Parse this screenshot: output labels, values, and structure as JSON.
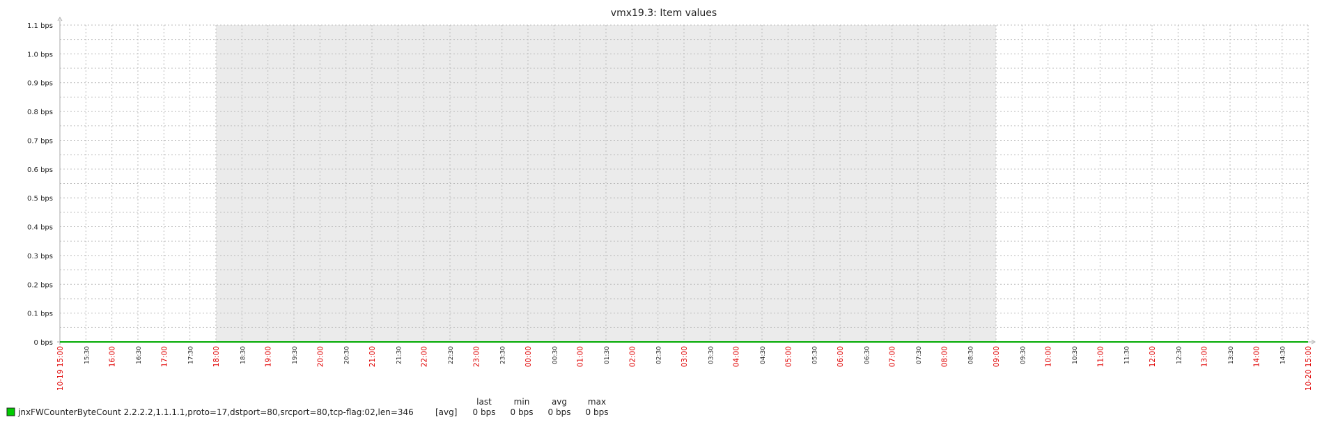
{
  "chart_data": {
    "type": "line",
    "title": "vmx19.3: Item values",
    "ylim": [
      0,
      1.1
    ],
    "y_ticks": [
      "0 bps",
      "0.1 bps",
      "0.2 bps",
      "0.3 bps",
      "0.4 bps",
      "0.5 bps",
      "0.6 bps",
      "0.7 bps",
      "0.8 bps",
      "0.9 bps",
      "1.0 bps",
      "1.1 bps"
    ],
    "x_ticks": [
      {
        "label": "10-19 15:00",
        "major": true
      },
      {
        "label": "15:30",
        "major": false
      },
      {
        "label": "16:00",
        "major": true
      },
      {
        "label": "16:30",
        "major": false
      },
      {
        "label": "17:00",
        "major": true
      },
      {
        "label": "17:30",
        "major": false
      },
      {
        "label": "18:00",
        "major": true
      },
      {
        "label": "18:30",
        "major": false
      },
      {
        "label": "19:00",
        "major": true
      },
      {
        "label": "19:30",
        "major": false
      },
      {
        "label": "20:00",
        "major": true
      },
      {
        "label": "20:30",
        "major": false
      },
      {
        "label": "21:00",
        "major": true
      },
      {
        "label": "21:30",
        "major": false
      },
      {
        "label": "22:00",
        "major": true
      },
      {
        "label": "22:30",
        "major": false
      },
      {
        "label": "23:00",
        "major": true
      },
      {
        "label": "23:30",
        "major": false
      },
      {
        "label": "00:00",
        "major": true
      },
      {
        "label": "00:30",
        "major": false
      },
      {
        "label": "01:00",
        "major": true
      },
      {
        "label": "01:30",
        "major": false
      },
      {
        "label": "02:00",
        "major": true
      },
      {
        "label": "02:30",
        "major": false
      },
      {
        "label": "03:00",
        "major": true
      },
      {
        "label": "03:30",
        "major": false
      },
      {
        "label": "04:00",
        "major": true
      },
      {
        "label": "04:30",
        "major": false
      },
      {
        "label": "05:00",
        "major": true
      },
      {
        "label": "05:30",
        "major": false
      },
      {
        "label": "06:00",
        "major": true
      },
      {
        "label": "06:30",
        "major": false
      },
      {
        "label": "07:00",
        "major": true
      },
      {
        "label": "07:30",
        "major": false
      },
      {
        "label": "08:00",
        "major": true
      },
      {
        "label": "08:30",
        "major": false
      },
      {
        "label": "09:00",
        "major": true
      },
      {
        "label": "09:30",
        "major": false
      },
      {
        "label": "10:00",
        "major": true
      },
      {
        "label": "10:30",
        "major": false
      },
      {
        "label": "11:00",
        "major": true
      },
      {
        "label": "11:30",
        "major": false
      },
      {
        "label": "12:00",
        "major": true
      },
      {
        "label": "12:30",
        "major": false
      },
      {
        "label": "13:00",
        "major": true
      },
      {
        "label": "13:30",
        "major": false
      },
      {
        "label": "14:00",
        "major": true
      },
      {
        "label": "14:30",
        "major": false
      },
      {
        "label": "10-20 15:00",
        "major": true
      }
    ],
    "shaded_range": [
      "18:00",
      "09:00"
    ],
    "grid": true,
    "series": [
      {
        "name": "jnxFWCounterByteCount 2.2.2.2,1.1.1.1,proto=17,dstport=80,srcport=80,tcp-flag:02,len=346",
        "color": "#00aa00",
        "x": [
          "10-19 15:00",
          "10-20 15:00"
        ],
        "values": [
          0,
          0
        ]
      }
    ]
  },
  "legend": {
    "function": "[avg]",
    "headers": {
      "last": "last",
      "min": "min",
      "avg": "avg",
      "max": "max"
    },
    "values": {
      "last": "0 bps",
      "min": "0 bps",
      "avg": "0 bps",
      "max": "0 bps"
    }
  },
  "colors": {
    "major_tick": "#e00000",
    "minor_tick": "#222222",
    "grid": "#bbbbbb",
    "shade": "#ebebeb",
    "series": "#00aa00"
  }
}
